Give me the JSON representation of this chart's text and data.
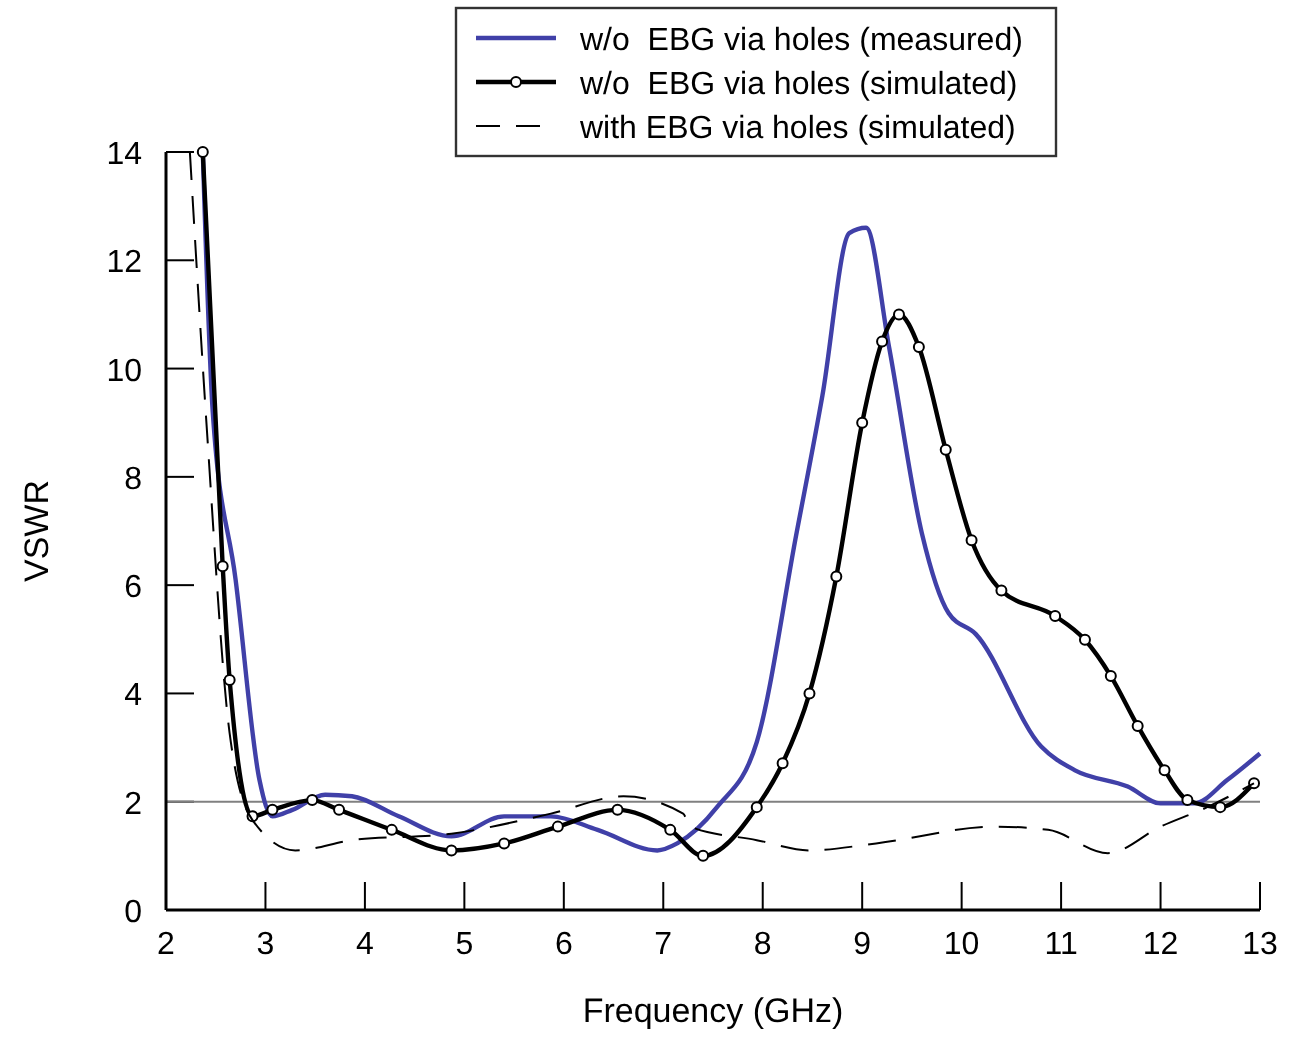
{
  "chart_data": {
    "type": "line",
    "xlabel": "Frequency (GHz)",
    "ylabel": "VSWR",
    "xlim": [
      2,
      13
    ],
    "ylim": [
      0,
      14
    ],
    "xticks": [
      2,
      3,
      4,
      5,
      6,
      7,
      8,
      9,
      10,
      11,
      12,
      13
    ],
    "yticks": [
      0,
      2,
      4,
      6,
      8,
      10,
      12,
      14
    ],
    "grid": false,
    "legend": "top",
    "line_style": "solid",
    "ref_lines": [
      {
        "axis": "y",
        "value": 2,
        "color": "#808080"
      }
    ],
    "series": [
      {
        "name": "w/o  EBG via holes (measured)",
        "color": "#4040a8",
        "marker": "none",
        "x": [
          2.37,
          2.47,
          2.7,
          2.94,
          3.07,
          3.27,
          3.6,
          3.87,
          4.34,
          4.87,
          5.4,
          5.87,
          6.34,
          6.94,
          7.14,
          7.54,
          7.94,
          8.34,
          8.6,
          8.87,
          9.04,
          9.27,
          9.6,
          9.87,
          10.14,
          10.8,
          11.14,
          11.67,
          12.0,
          12.34,
          12.67,
          13.0
        ],
        "values": [
          14,
          9.2,
          6.1,
          2.4,
          1.73,
          1.85,
          2.13,
          2.1,
          1.73,
          1.36,
          1.73,
          1.73,
          1.48,
          1.1,
          1.23,
          1.9,
          3.1,
          6.96,
          9.5,
          12.5,
          12.6,
          10.4,
          6.96,
          5.48,
          5.1,
          3.02,
          2.58,
          2.28,
          1.97,
          1.97,
          2.4,
          2.89
        ]
      },
      {
        "name": "w/o  EBG via holes (simulated)",
        "color": "#000000",
        "marker": "circle",
        "x": [
          2.37,
          2.57,
          2.64,
          2.87,
          3.07,
          3.47,
          3.74,
          4.27,
          4.87,
          5.4,
          5.94,
          6.54,
          7.07,
          7.4,
          7.94,
          8.2,
          8.47,
          8.74,
          9.0,
          9.2,
          9.37,
          9.57,
          9.84,
          10.1,
          10.4,
          10.94,
          11.24,
          11.5,
          11.77,
          12.04,
          12.27,
          12.6,
          12.94
        ],
        "values": [
          14,
          6.35,
          4.25,
          1.73,
          1.85,
          2.03,
          1.85,
          1.48,
          1.1,
          1.23,
          1.54,
          1.85,
          1.48,
          1.0,
          1.9,
          2.71,
          4.0,
          6.16,
          9.0,
          10.5,
          11.0,
          10.4,
          8.5,
          6.83,
          5.9,
          5.43,
          4.99,
          4.32,
          3.4,
          2.58,
          2.03,
          1.9,
          2.34
        ]
      },
      {
        "name": "with EBG via holes (simulated)",
        "color": "#000000",
        "marker": "none",
        "line_style": "dashed",
        "x": [
          2.24,
          2.41,
          2.64,
          2.87,
          3.3,
          3.87,
          4.87,
          5.87,
          6.6,
          7.2,
          7.27,
          7.94,
          8.47,
          9.14,
          10.34,
          10.87,
          11.47,
          12.0,
          12.47,
          12.94
        ],
        "values": [
          14,
          8.9,
          3.26,
          1.66,
          1.1,
          1.29,
          1.41,
          1.78,
          2.1,
          1.78,
          1.54,
          1.29,
          1.1,
          1.23,
          1.54,
          1.48,
          1.05,
          1.54,
          1.9,
          2.34
        ]
      }
    ]
  }
}
